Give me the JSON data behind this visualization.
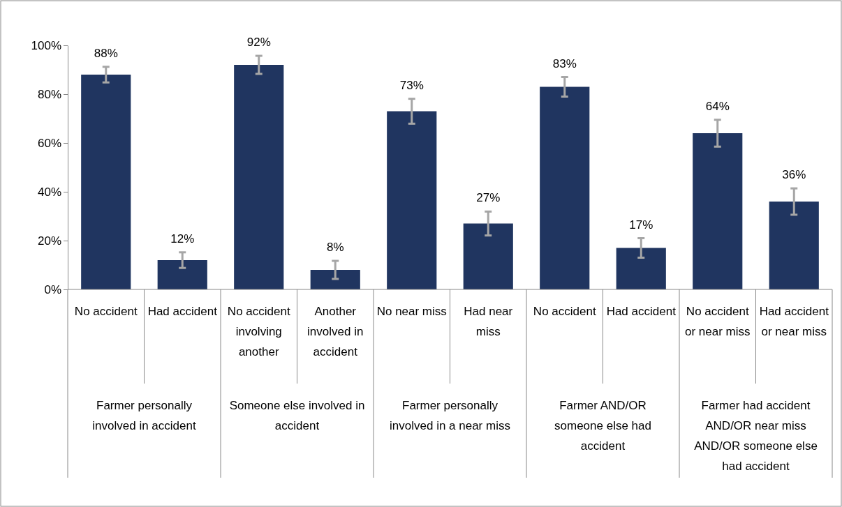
{
  "chart_data": {
    "type": "bar",
    "categories": [
      "No accident",
      "Had accident",
      "No accident involving another",
      "Another involved in accident",
      "No near miss",
      "Had near miss",
      "No accident",
      "Had accident",
      "No accident or near miss",
      "Had accident or near miss"
    ],
    "values": [
      88,
      12,
      92,
      8,
      73,
      27,
      83,
      17,
      64,
      36
    ],
    "errors": [
      3.2,
      3.2,
      3.7,
      3.7,
      5.1,
      4.9,
      4.0,
      4.0,
      5.5,
      5.4
    ],
    "color": "#203560",
    "ylim": [
      0,
      100
    ],
    "yticks": [
      {
        "value": 0,
        "label": "0%"
      },
      {
        "value": 20,
        "label": "20%"
      },
      {
        "value": 40,
        "label": "40%"
      },
      {
        "value": 60,
        "label": "60%"
      },
      {
        "value": 80,
        "label": "80%"
      },
      {
        "value": 100,
        "label": "100%"
      }
    ],
    "value_labels": [
      "88%",
      "12%",
      "92%",
      "8%",
      "73%",
      "27%",
      "83%",
      "17%",
      "64%",
      "36%"
    ],
    "annotations": [
      "Farmer personally involved in accident",
      "Someone else involved in accident",
      "Farmer personally involved in a near miss",
      "Farmer AND/OR someone else had accident",
      "Farmer had accident AND/OR near miss AND/OR someone else had accident"
    ],
    "grid": false
  }
}
